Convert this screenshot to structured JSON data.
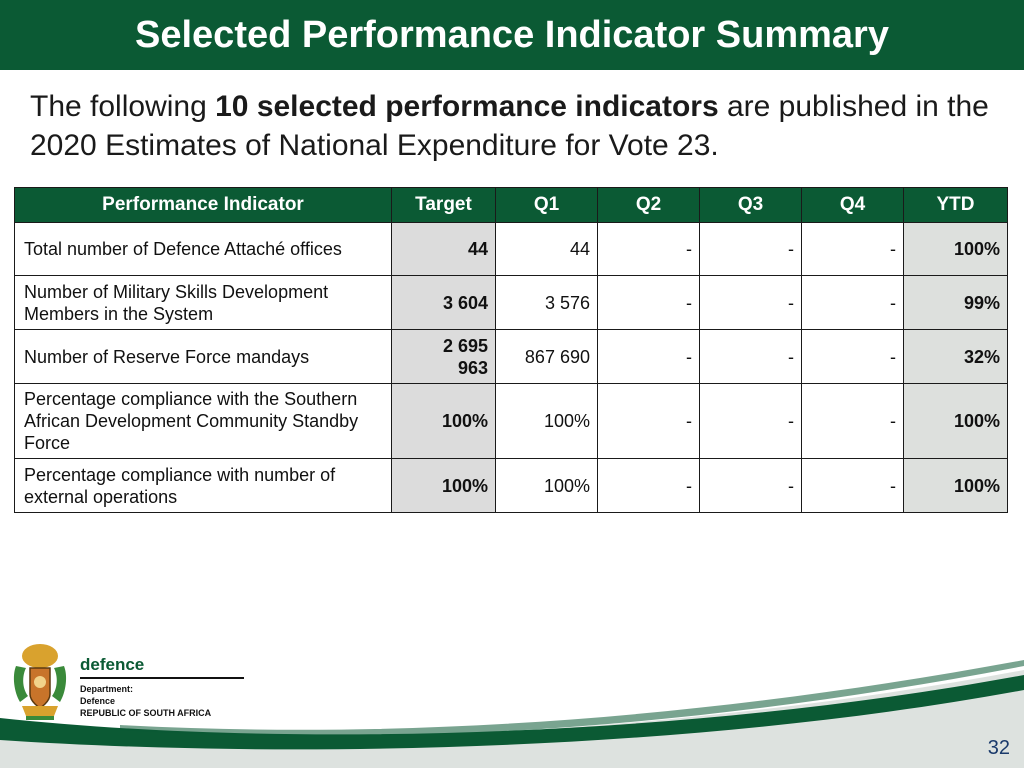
{
  "title": "Selected Performance Indicator Summary",
  "intro": {
    "before": "The following ",
    "bold": "10 selected performance indicators",
    "after": " are published in the 2020 Estimates of National Expenditure for Vote 23."
  },
  "table": {
    "headers": [
      "Performance Indicator",
      "Target",
      "Q1",
      "Q2",
      "Q3",
      "Q4",
      "YTD"
    ],
    "rows": [
      {
        "indicator": "Total number of Defence Attaché offices",
        "target": "44",
        "q1": "44",
        "q2": "-",
        "q3": "-",
        "q4": "-",
        "ytd": "100%"
      },
      {
        "indicator": "Number of Military Skills Development Members in the System",
        "target": "3 604",
        "q1": "3 576",
        "q2": "-",
        "q3": "-",
        "q4": "-",
        "ytd": "99%"
      },
      {
        "indicator": "Number of Reserve Force mandays",
        "target": "2 695 963",
        "q1": "867 690",
        "q2": "-",
        "q3": "-",
        "q4": "-",
        "ytd": "32%"
      },
      {
        "indicator": "Percentage compliance with the Southern African Development Community Standby Force",
        "target": "100%",
        "q1": "100%",
        "q2": "-",
        "q3": "-",
        "q4": "-",
        "ytd": "100%"
      },
      {
        "indicator": "Percentage compliance with number of external operations",
        "target": "100%",
        "q1": "100%",
        "q2": "-",
        "q3": "-",
        "q4": "-",
        "ytd": "100%"
      }
    ]
  },
  "footer": {
    "brand": "defence",
    "line1": "Department:",
    "line2": "Defence",
    "line3": "REPUBLIC OF SOUTH AFRICA",
    "crest_icon": "coat-of-arms-icon"
  },
  "page_number": "32",
  "colors": {
    "header_green": "#0b5a34",
    "target_fill": "#dcdcdc",
    "ytd_fill": "#dde0dd"
  }
}
